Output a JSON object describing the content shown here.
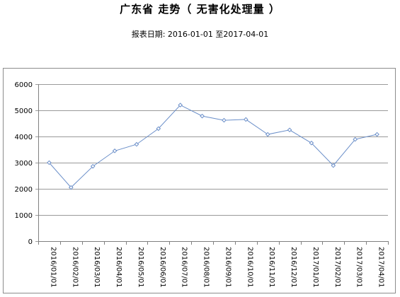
{
  "header": {
    "title": "广东省 走势（ 无害化处理量 ）",
    "subtitle": "报表日期: 2016-01-01 至2017-04-01"
  },
  "chart_data": {
    "type": "line",
    "title": "广东省 走势（ 无害化处理量 ）",
    "subtitle": "报表日期: 2016-01-01 至2017-04-01",
    "xlabel": "",
    "ylabel": "",
    "categories": [
      "2016/01/01",
      "2016/02/01",
      "2016/03/01",
      "2016/04/01",
      "2016/05/01",
      "2016/06/01",
      "2016/07/01",
      "2016/08/01",
      "2016/09/01",
      "2016/10/01",
      "2016/11/01",
      "2016/12/01",
      "2017/01/01",
      "2017/02/01",
      "2017/03/01",
      "2017/04/01"
    ],
    "series": [
      {
        "values": [
          3000,
          2050,
          2860,
          3450,
          3700,
          4300,
          5200,
          4780,
          4620,
          4650,
          4080,
          4250,
          3750,
          2890,
          3890,
          4080
        ]
      }
    ],
    "ylim": [
      0,
      6000
    ],
    "yticks": [
      0,
      1000,
      2000,
      3000,
      4000,
      5000,
      6000
    ],
    "grid": "horizontal",
    "legend": "none",
    "colors": {
      "line": "#6b8fc9",
      "marker": "#6b8fc9",
      "grid": "#9a9a9a",
      "axis": "#808080"
    }
  }
}
